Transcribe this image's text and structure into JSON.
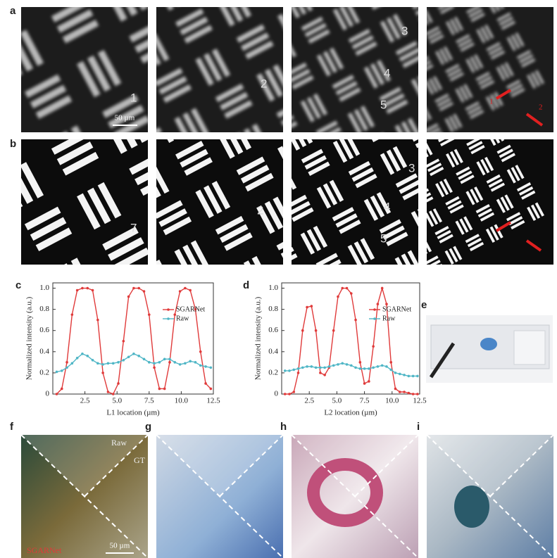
{
  "panel_labels": [
    "a",
    "b",
    "c",
    "d",
    "e",
    "f",
    "g",
    "h",
    "i"
  ],
  "image_texts": {
    "scale_bar_a": "50 µm",
    "arrow_1": "1",
    "arrow_2": "2",
    "a_digits": [
      "1",
      "2",
      "3",
      "4",
      "5"
    ],
    "b_digits": [
      "7",
      "2",
      "3",
      "4",
      "5"
    ],
    "raw": "Raw",
    "gt": "GT",
    "sgarnet": "SGARNet",
    "scale_bar_f": "50 µm"
  },
  "chart_data": [
    {
      "type": "line",
      "xlabel": "L1 location (µm)",
      "ylabel": "Normalized intensity (a.u.)",
      "x": [
        0.3,
        0.7,
        1.1,
        1.5,
        1.9,
        2.3,
        2.7,
        3.1,
        3.5,
        3.9,
        4.3,
        4.7,
        5.1,
        5.5,
        5.9,
        6.3,
        6.7,
        7.1,
        7.5,
        7.9,
        8.3,
        8.7,
        9.1,
        9.5,
        9.9,
        10.3,
        10.7,
        11.1,
        11.5,
        11.9,
        12.3
      ],
      "series": [
        {
          "name": "SGARNet",
          "color": "#e03a3a",
          "values": [
            0.0,
            0.05,
            0.3,
            0.75,
            0.98,
            1.0,
            1.0,
            0.98,
            0.7,
            0.2,
            0.02,
            0.0,
            0.1,
            0.5,
            0.92,
            1.0,
            1.0,
            0.97,
            0.75,
            0.25,
            0.05,
            0.05,
            0.3,
            0.75,
            0.97,
            1.0,
            0.98,
            0.8,
            0.4,
            0.1,
            0.05
          ]
        },
        {
          "name": "Raw",
          "color": "#4fb6c6",
          "values": [
            0.21,
            0.22,
            0.25,
            0.29,
            0.34,
            0.38,
            0.36,
            0.32,
            0.29,
            0.28,
            0.29,
            0.29,
            0.3,
            0.32,
            0.35,
            0.38,
            0.36,
            0.33,
            0.3,
            0.29,
            0.3,
            0.33,
            0.33,
            0.3,
            0.28,
            0.29,
            0.31,
            0.3,
            0.27,
            0.26,
            0.25
          ]
        }
      ],
      "xlim": [
        0,
        12.5
      ],
      "ylim": [
        0,
        1.05
      ],
      "xticks": [
        2.5,
        {
          "value": 5,
          "label": "5.0"
        },
        7.5,
        {
          "value": 10,
          "label": "10.0"
        },
        12.5
      ],
      "yticks": [
        0,
        0.2,
        0.4,
        0.6,
        0.8,
        {
          "value": 1,
          "label": "1.0"
        }
      ],
      "legend": "upper right"
    },
    {
      "type": "line",
      "xlabel": "L2 location (µm)",
      "ylabel": "Normalized intensity (a.u.)",
      "x": [
        0.3,
        0.7,
        1.1,
        1.5,
        1.9,
        2.3,
        2.7,
        3.1,
        3.5,
        3.9,
        4.3,
        4.7,
        5.1,
        5.5,
        5.9,
        6.3,
        6.7,
        7.1,
        7.5,
        7.9,
        8.3,
        8.7,
        9.1,
        9.5,
        9.9,
        10.3,
        10.7,
        11.1,
        11.5,
        11.9,
        12.3
      ],
      "series": [
        {
          "name": "SGARNet",
          "color": "#e03a3a",
          "values": [
            0.0,
            0.0,
            0.02,
            0.2,
            0.6,
            0.82,
            0.83,
            0.6,
            0.2,
            0.18,
            0.25,
            0.6,
            0.92,
            1.0,
            1.0,
            0.95,
            0.7,
            0.3,
            0.1,
            0.12,
            0.45,
            0.85,
            1.0,
            0.85,
            0.3,
            0.05,
            0.02,
            0.02,
            0.01,
            0.0,
            0.0
          ]
        },
        {
          "name": "Raw",
          "color": "#4fb6c6",
          "values": [
            0.22,
            0.22,
            0.23,
            0.24,
            0.25,
            0.26,
            0.26,
            0.25,
            0.25,
            0.25,
            0.26,
            0.27,
            0.28,
            0.29,
            0.28,
            0.27,
            0.25,
            0.24,
            0.24,
            0.24,
            0.25,
            0.26,
            0.27,
            0.26,
            0.23,
            0.2,
            0.19,
            0.18,
            0.17,
            0.17,
            0.17
          ]
        }
      ],
      "xlim": [
        0,
        12.5
      ],
      "ylim": [
        0,
        1.05
      ],
      "xticks": [
        2.5,
        {
          "value": 5,
          "label": "5.0"
        },
        7.5,
        {
          "value": 10,
          "label": "10.0"
        },
        12.5
      ],
      "yticks": [
        0,
        0.2,
        0.4,
        0.6,
        0.8,
        {
          "value": 1,
          "label": "1.0"
        }
      ],
      "legend": "upper right"
    }
  ]
}
